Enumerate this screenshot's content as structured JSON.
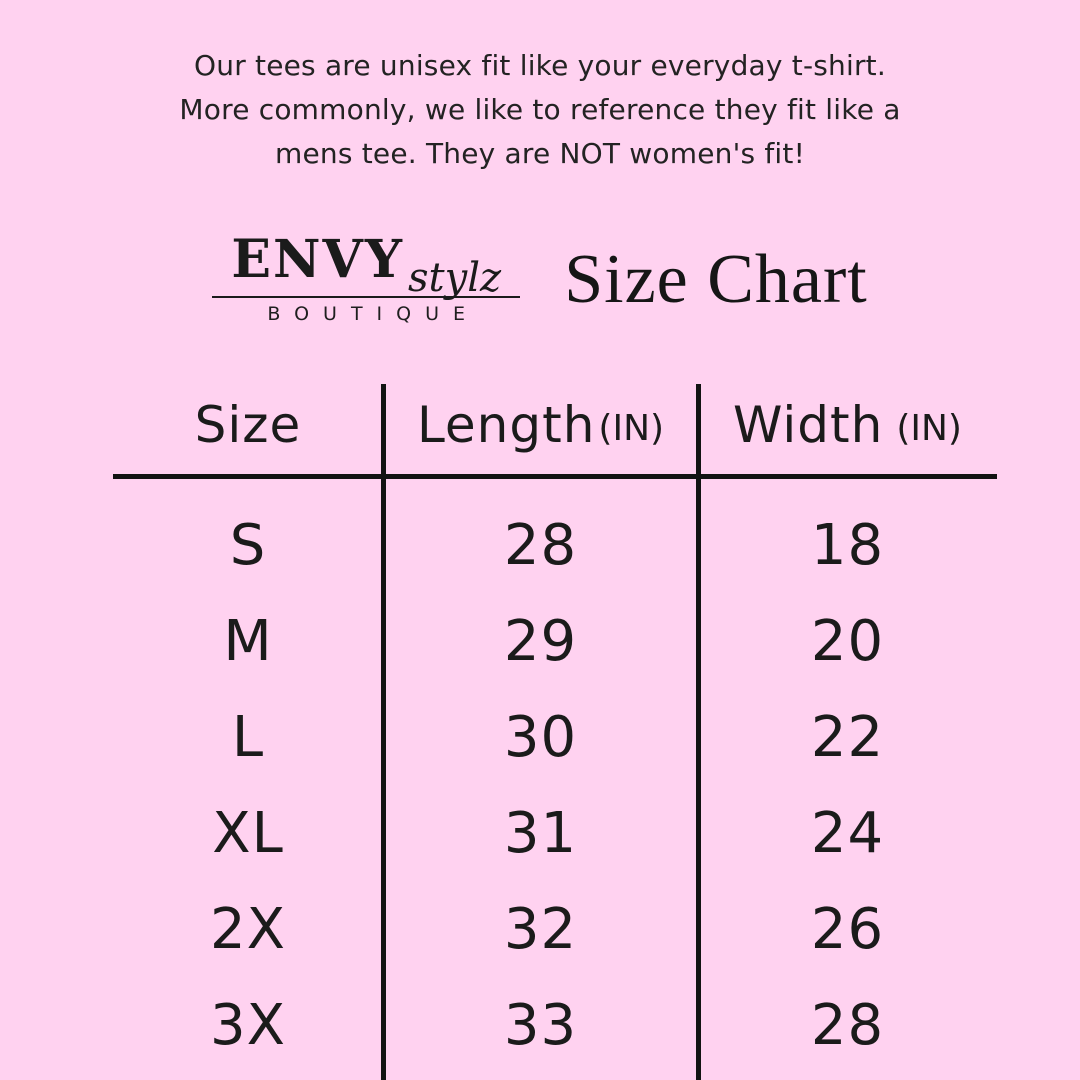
{
  "colors": {
    "background": "#ffd2f0",
    "text": "#1b1b1b",
    "line": "#131313"
  },
  "intro": {
    "lines": [
      "Our tees are unisex fit like your everyday t-shirt.",
      "More commonly, we like to reference they fit like a",
      "mens tee. They are NOT women's fit!"
    ]
  },
  "brand": {
    "name": "ENVY",
    "script": "stylz",
    "subtitle": "BOUTIQUE"
  },
  "title": "Size Chart",
  "chart_data": {
    "type": "table",
    "title": "Size Chart",
    "columns": [
      {
        "label": "Size",
        "unit": ""
      },
      {
        "label": "Length",
        "unit": "(IN)"
      },
      {
        "label": "Width",
        "unit": "(IN)"
      }
    ],
    "rows": [
      {
        "size": "S",
        "length_in": "28",
        "width_in": "18"
      },
      {
        "size": "M",
        "length_in": "29",
        "width_in": "20"
      },
      {
        "size": "L",
        "length_in": "30",
        "width_in": "22"
      },
      {
        "size": "XL",
        "length_in": "31",
        "width_in": "24"
      },
      {
        "size": "2X",
        "length_in": "32",
        "width_in": "26"
      },
      {
        "size": "3X",
        "length_in": "33",
        "width_in": "28"
      }
    ]
  }
}
